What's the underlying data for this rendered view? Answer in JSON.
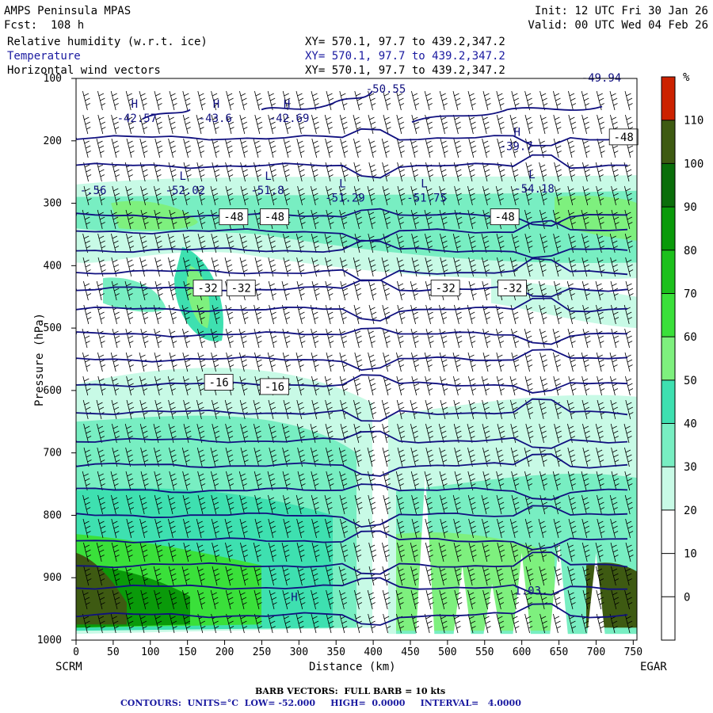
{
  "header": {
    "model": "AMPS Peninsula MPAS",
    "forecast": "Fcst:  108 h",
    "init": "Init: 12 UTC Fri 30 Jan 26",
    "valid": "Valid: 00 UTC Wed 04 Feb 26"
  },
  "fields": [
    {
      "label": "Relative humidity (w.r.t. ice)",
      "xy": "XY= 570.1, 97.7 to 439.2,347.2",
      "color": "#000000"
    },
    {
      "label": "Temperature",
      "xy": "XY= 570.1, 97.7 to 439.2,347.2",
      "color": "#1a1aa0"
    },
    {
      "label": "Horizontal wind vectors",
      "xy": "XY= 570.1, 97.7 to 439.2,347.2",
      "color": "#000000"
    }
  ],
  "footer": {
    "barb_line": "BARB VECTORS:  FULL BARB = 10 kts",
    "contours_line": "CONTOURS:  UNITS=°C  LOW= -52.000     HIGH=  0.0000     INTERVAL=   4.0000"
  },
  "chart_data": {
    "type": "heatmap",
    "xlabel": "Distance (km)",
    "ylabel": "Pressure (hPa)",
    "x_ticks": [
      0,
      50,
      100,
      150,
      200,
      250,
      300,
      350,
      400,
      450,
      500,
      550,
      600,
      650,
      700,
      750
    ],
    "x_range": [
      0,
      755
    ],
    "y_ticks": [
      100,
      200,
      300,
      400,
      500,
      600,
      700,
      800,
      900,
      1000
    ],
    "y_range": [
      100,
      1000
    ],
    "left_endpoint": "SCRM",
    "right_endpoint": "EGAR",
    "colorbar": {
      "unit": "%",
      "labels": [
        0,
        10,
        20,
        30,
        40,
        50,
        60,
        70,
        80,
        90,
        100,
        110
      ],
      "colors": [
        "#ffffff",
        "#ffffff",
        "#ffffff",
        "#c8fae6",
        "#78eec2",
        "#3ee0b0",
        "#7ef07e",
        "#3ae03a",
        "#1cc01c",
        "#0a9a0a",
        "#0a6e0a",
        "#3e5a12",
        "#cc2200"
      ]
    },
    "temperature_contours": {
      "units": "°C",
      "low": -52.0,
      "high": 0.0,
      "interval": 4.0,
      "labels": [
        {
          "text": "-48",
          "x": 195,
          "p": 323
        },
        {
          "text": "-48",
          "x": 250,
          "p": 323
        },
        {
          "text": "-48",
          "x": 560,
          "p": 323
        },
        {
          "text": "-48",
          "x": 720,
          "p": 195
        },
        {
          "text": "-32",
          "x": 160,
          "p": 437
        },
        {
          "text": "-32",
          "x": 205,
          "p": 437
        },
        {
          "text": "-32",
          "x": 480,
          "p": 437
        },
        {
          "text": "-32",
          "x": 570,
          "p": 437
        },
        {
          "text": "-16",
          "x": 175,
          "p": 588
        },
        {
          "text": "-16",
          "x": 250,
          "p": 595
        }
      ],
      "extrema": [
        {
          "kind": "H",
          "value": "-42.57",
          "x": 55,
          "p": 165
        },
        {
          "kind": "H",
          "value": "-43.6",
          "x": 165,
          "p": 165
        },
        {
          "kind": "H",
          "value": "-42.69",
          "x": 260,
          "p": 165
        },
        {
          "kind": "L",
          "value": "-52.02",
          "x": 120,
          "p": 280
        },
        {
          "kind": "L",
          "value": "-51.8",
          "x": 235,
          "p": 280
        },
        {
          "kind": "L",
          "value": "-51.29",
          "x": 335,
          "p": 292
        },
        {
          "kind": "L",
          "value": "-51.75",
          "x": 445,
          "p": 292
        },
        {
          "kind": "L",
          "value": "-54.18",
          "x": 590,
          "p": 278
        },
        {
          "kind": "H",
          "value": "-39.7",
          "x": 570,
          "p": 210
        },
        {
          "kind": "",
          "value": "-50.55",
          "x": 390,
          "p": 118
        },
        {
          "kind": "",
          "value": "-49.94",
          "x": 680,
          "p": 100
        },
        {
          "kind": "",
          "value": "-.56",
          "x": 5,
          "p": 280
        },
        {
          "kind": "",
          "value": "1.03",
          "x": 590,
          "p": 922
        },
        {
          "kind": "H",
          "value": "",
          "x": 270,
          "p": 955
        }
      ]
    }
  }
}
